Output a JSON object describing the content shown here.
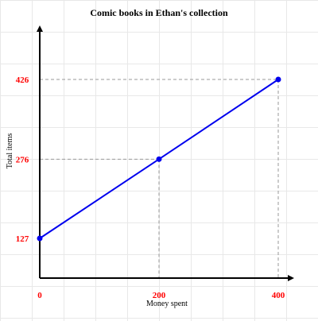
{
  "chart_data": {
    "type": "line",
    "title": "Comic books in Ethan's collection",
    "xlabel": "Money spent",
    "ylabel": "Total items",
    "xlim": [
      0,
      425
    ],
    "ylim": [
      85,
      480
    ],
    "x_ticks": [
      {
        "value": 0,
        "label": "0"
      },
      {
        "value": 200,
        "label": "200"
      },
      {
        "value": 400,
        "label": "400"
      }
    ],
    "y_ticks": [
      {
        "value": 127,
        "label": "127"
      },
      {
        "value": 276,
        "label": "276"
      },
      {
        "value": 426,
        "label": "426"
      }
    ],
    "series": [
      {
        "x": [
          0,
          200,
          400
        ],
        "y": [
          127,
          276,
          426
        ]
      }
    ],
    "grid": true,
    "colors": {
      "line": "#0000ee",
      "point": "#0000ee",
      "tick_label": "#ff0000",
      "axis": "#000000",
      "guide": "#999999",
      "grid": "#e8e8e8"
    }
  }
}
